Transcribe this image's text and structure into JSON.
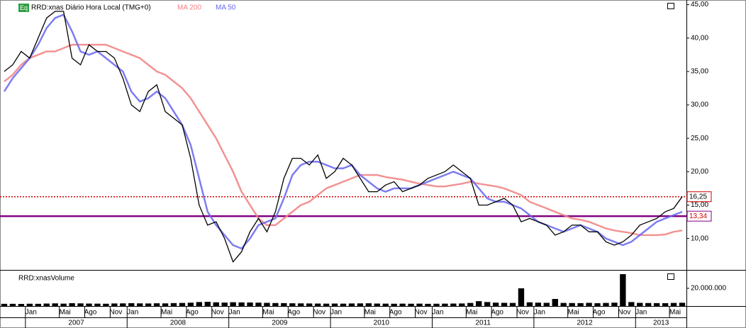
{
  "chart_data": {
    "type": "line",
    "title": "RRD:xnas Diário Hora Local (TMG+0)",
    "icon": "Eq",
    "categories": [
      null,
      null,
      null,
      "Jan",
      null,
      null,
      null,
      "Mai",
      null,
      null,
      "Ago",
      null,
      null,
      "Nov",
      null,
      "Jan",
      null,
      null,
      null,
      "Mai",
      null,
      null,
      "Ago",
      null,
      null,
      "Nov",
      null,
      "Jan",
      null,
      null,
      null,
      "Mai",
      null,
      null,
      "Ago",
      null,
      null,
      "Nov",
      null,
      "Jan",
      null,
      null,
      null,
      "Mai",
      null,
      null,
      "Ago",
      null,
      null,
      "Nov",
      null,
      "Jan",
      null,
      null,
      null,
      "Mai",
      null,
      null,
      "Ago",
      null,
      null,
      "Nov",
      null,
      "Jan",
      null,
      null,
      null,
      "Mai",
      null,
      null,
      "Ago",
      null,
      null,
      "Nov",
      null,
      "Jan",
      null,
      null,
      null,
      "Mai",
      null
    ],
    "years": [
      "2007",
      "2008",
      "2009",
      "2010",
      "2011",
      "2012",
      "2013"
    ],
    "series": [
      {
        "name": "RRD:xnas",
        "color": "#000000",
        "values": [
          35,
          36,
          38,
          37,
          40,
          43,
          44,
          44,
          37,
          36,
          39,
          38,
          38,
          37,
          34,
          30,
          29,
          32,
          33,
          29,
          28,
          27,
          22,
          15,
          12,
          12.5,
          10,
          6.5,
          8,
          11,
          13,
          11,
          14,
          19,
          22,
          22,
          21,
          22.5,
          19,
          20,
          22,
          21,
          19,
          17,
          17,
          18,
          18.5,
          17,
          17.5,
          18,
          19,
          19.5,
          20,
          21,
          20,
          19,
          15,
          15,
          15.5,
          16,
          15,
          12.5,
          13,
          12.5,
          12,
          10.5,
          11,
          12,
          12,
          11,
          11,
          9.5,
          9,
          9.5,
          10.5,
          12,
          12.5,
          13,
          14,
          14.5,
          16.25
        ]
      },
      {
        "name": "MA 200",
        "color": "#f08080",
        "values": [
          33.5,
          34.5,
          36,
          37,
          37.5,
          38,
          38,
          38.5,
          39,
          39,
          39,
          39,
          39,
          38.5,
          38,
          37.5,
          37,
          36,
          35,
          34.5,
          33.5,
          32.5,
          31,
          29,
          27,
          25,
          22.5,
          20,
          17,
          15,
          13,
          12,
          12,
          13,
          14,
          15,
          15.5,
          16.5,
          17.5,
          18,
          18.5,
          19,
          19.5,
          19.5,
          19.5,
          19.2,
          19,
          18.8,
          18.5,
          18.2,
          18,
          17.8,
          17.8,
          18,
          18.2,
          18.5,
          18.2,
          18,
          17.8,
          17.5,
          17,
          16.5,
          15.5,
          15,
          14.5,
          14,
          13.5,
          13,
          12.8,
          12.5,
          12,
          11.5,
          11.2,
          11,
          10.8,
          10.5,
          10.5,
          10.5,
          10.6,
          11,
          11.2
        ]
      },
      {
        "name": "MA 50",
        "color": "#6666ee",
        "values": [
          32,
          34,
          35.5,
          37,
          39,
          41.5,
          43,
          43.5,
          41,
          38,
          37.5,
          38,
          37,
          36,
          35,
          32,
          30.5,
          31,
          32,
          31,
          29,
          27,
          24,
          19,
          14,
          12,
          10.5,
          9,
          8.5,
          10,
          12,
          12.5,
          13,
          16,
          19.5,
          21,
          21.5,
          21.5,
          21,
          20.5,
          20.5,
          21,
          19.5,
          18.5,
          17.5,
          17,
          17.5,
          17.5,
          17.5,
          18,
          18.5,
          19,
          19.5,
          20,
          19.5,
          19,
          17.5,
          16,
          15.5,
          15.5,
          15,
          14.5,
          13.5,
          12.5,
          12,
          11.5,
          11,
          11.5,
          12,
          11.5,
          11,
          10,
          9.5,
          9,
          9.5,
          10.5,
          11.5,
          12.5,
          13,
          13.5,
          14
        ]
      }
    ],
    "ylim": [
      5.4,
      45.7
    ],
    "yticks": [
      {
        "value": 10,
        "label": "10,00"
      },
      {
        "value": 15,
        "label": "15,00"
      },
      {
        "value": 20,
        "label": "20,00"
      },
      {
        "value": 25,
        "label": "25,00"
      },
      {
        "value": 30,
        "label": "30,00"
      },
      {
        "value": 35,
        "label": "35,00"
      },
      {
        "value": 40,
        "label": "40,00"
      },
      {
        "value": 45,
        "label": "45,00"
      }
    ],
    "levels": [
      {
        "value": 16.25,
        "label": "16,25",
        "color": "#cc0000",
        "style": "dotted",
        "label_color": "#000000"
      },
      {
        "value": 13.34,
        "label": "13,34",
        "color": "#800080",
        "style": "solid",
        "label_color": "#cc0000"
      }
    ],
    "volume": {
      "title": "RRD:xnasVolume",
      "color": "#000000",
      "values": [
        2500000,
        2500000,
        2400000,
        2600000,
        2500000,
        2800000,
        3000000,
        2700000,
        3200000,
        3000000,
        2800000,
        2700000,
        2600000,
        2900000,
        3000000,
        3200000,
        3000000,
        2900000,
        3100000,
        3000000,
        3300000,
        3500000,
        3800000,
        4500000,
        4800000,
        4200000,
        3900000,
        4300000,
        4100000,
        4000000,
        3800000,
        3600000,
        3400000,
        3300000,
        3100000,
        3000000,
        2900000,
        2800000,
        2700000,
        2800000,
        2700000,
        2900000,
        3000000,
        3100000,
        2800000,
        2700000,
        2600000,
        2700000,
        2600000,
        2700000,
        2500000,
        2600000,
        2700000,
        2800000,
        2900000,
        3500000,
        5500000,
        4500000,
        3800000,
        3600000,
        3500000,
        20000000,
        4200000,
        3800000,
        3600000,
        8000000,
        3500000,
        3400000,
        3300000,
        3600000,
        3200000,
        3500000,
        3800000,
        36000000,
        4500000,
        3600000,
        3400000,
        3300000,
        3200000,
        3500000,
        3700000
      ]
    },
    "vlim": [
      0,
      39200000
    ],
    "vticks": [
      {
        "value": 20000000,
        "label": "20.000.000"
      }
    ],
    "grid": false
  }
}
